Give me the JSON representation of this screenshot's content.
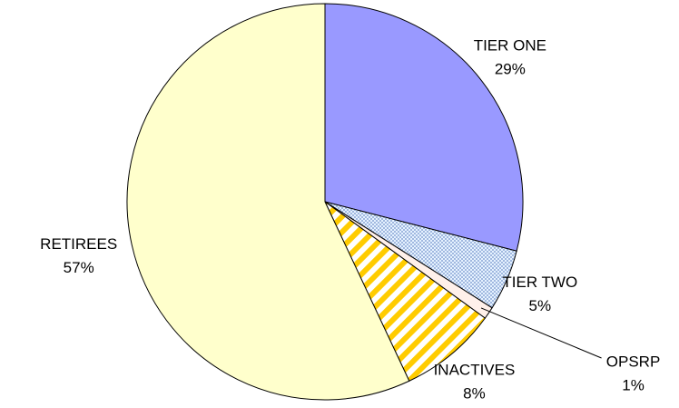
{
  "chart_data": {
    "type": "pie",
    "categories": [
      "TIER ONE",
      "TIER TWO",
      "OPSRP",
      "INACTIVES",
      "RETIREES"
    ],
    "values": [
      29,
      5,
      1,
      8,
      57
    ],
    "value_labels": [
      "29%",
      "5%",
      "1%",
      "8%",
      "57%"
    ],
    "colors": [
      "#9999ff",
      "#6f8fc8",
      "#fff0ea",
      "#ffcc00",
      "#ffffcc"
    ],
    "patterns": [
      null,
      "dots",
      null,
      "stripes",
      null
    ]
  }
}
